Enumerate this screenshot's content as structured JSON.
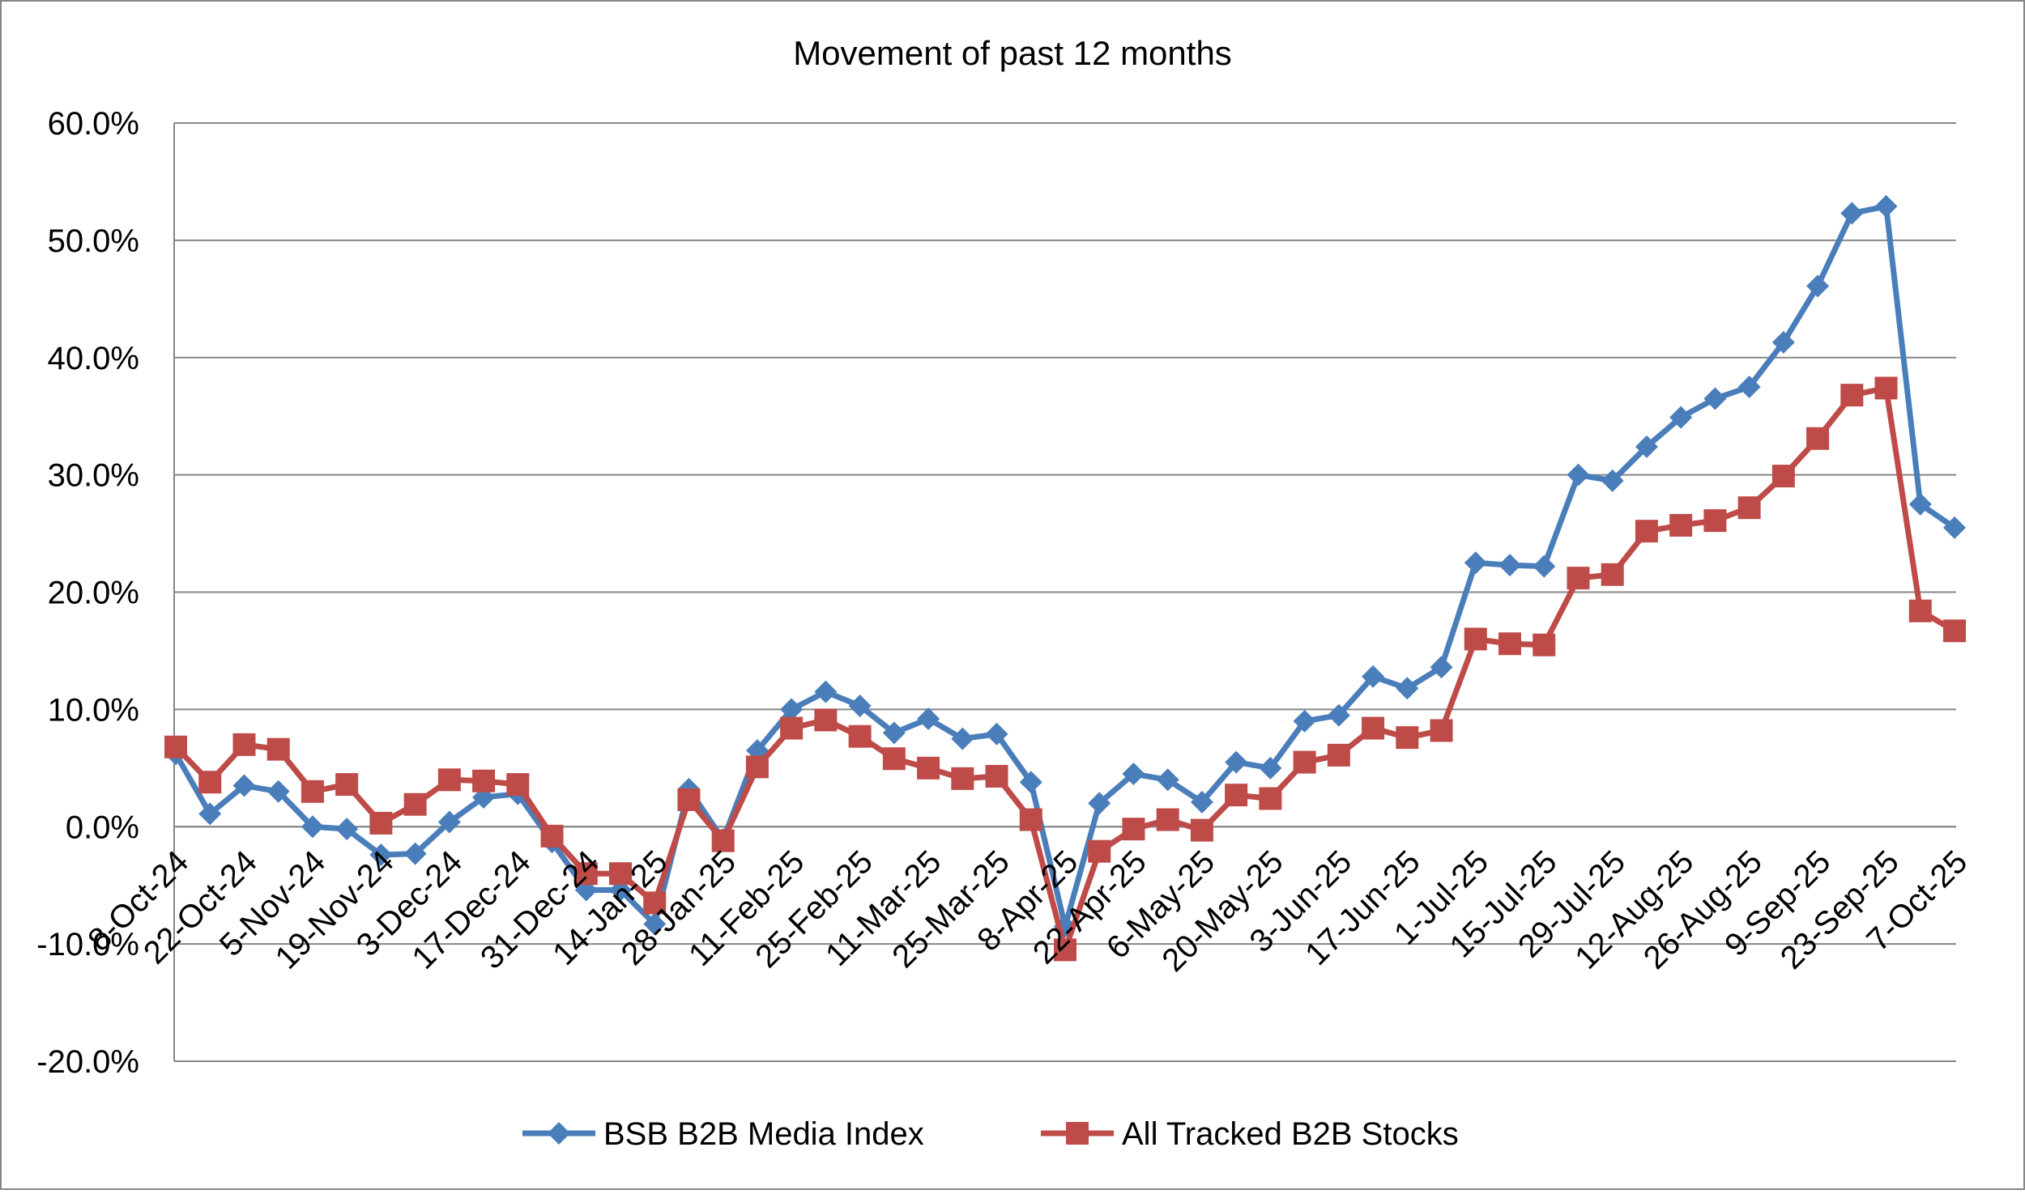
{
  "chart_data": {
    "type": "line",
    "title": "Movement of past 12 months",
    "xlabel": "",
    "ylabel": "",
    "ylim": [
      -20,
      60
    ],
    "y_ticks": [
      -20,
      -10,
      0,
      10,
      20,
      30,
      40,
      50,
      60
    ],
    "y_tick_labels": [
      "-20.0%",
      "-10.0%",
      "0.0%",
      "10.0%",
      "20.0%",
      "30.0%",
      "40.0%",
      "50.0%",
      "60.0%"
    ],
    "grid": true,
    "legend_position": "bottom",
    "x_tick_labels": [
      "8-Oct-24",
      "22-Oct-24",
      "5-Nov-24",
      "19-Nov-24",
      "3-Dec-24",
      "17-Dec-24",
      "31-Dec-24",
      "14-Jan-25",
      "28-Jan-25",
      "11-Feb-25",
      "25-Feb-25",
      "11-Mar-25",
      "25-Mar-25",
      "8-Apr-25",
      "22-Apr-25",
      "6-May-25",
      "20-May-25",
      "3-Jun-25",
      "17-Jun-25",
      "1-Jul-25",
      "15-Jul-25",
      "29-Jul-25",
      "12-Aug-25",
      "26-Aug-25",
      "9-Sep-25",
      "23-Sep-25",
      "7-Oct-25"
    ],
    "x": [
      "8-Oct-24",
      "15-Oct-24",
      "22-Oct-24",
      "29-Oct-24",
      "5-Nov-24",
      "12-Nov-24",
      "19-Nov-24",
      "26-Nov-24",
      "3-Dec-24",
      "10-Dec-24",
      "17-Dec-24",
      "24-Dec-24",
      "31-Dec-24",
      "7-Jan-25",
      "14-Jan-25",
      "21-Jan-25",
      "28-Jan-25",
      "4-Feb-25",
      "11-Feb-25",
      "18-Feb-25",
      "25-Feb-25",
      "4-Mar-25",
      "11-Mar-25",
      "18-Mar-25",
      "25-Mar-25",
      "1-Apr-25",
      "8-Apr-25",
      "15-Apr-25",
      "22-Apr-25",
      "29-Apr-25",
      "6-May-25",
      "13-May-25",
      "20-May-25",
      "27-May-25",
      "3-Jun-25",
      "10-Jun-25",
      "17-Jun-25",
      "24-Jun-25",
      "1-Jul-25",
      "8-Jul-25",
      "15-Jul-25",
      "22-Jul-25",
      "29-Jul-25",
      "5-Aug-25",
      "12-Aug-25",
      "19-Aug-25",
      "26-Aug-25",
      "2-Sep-25",
      "9-Sep-25",
      "16-Sep-25",
      "23-Sep-25",
      "30-Sep-25",
      "7-Oct-25"
    ],
    "series": [
      {
        "name": "BSB B2B Media Index",
        "color": "#4a7ebb",
        "marker": "diamond",
        "values": [
          6.2,
          1.1,
          3.5,
          3.0,
          0.0,
          -0.2,
          -2.4,
          -2.3,
          0.4,
          2.5,
          2.8,
          -1.3,
          -5.4,
          -5.4,
          -8.3,
          3.2,
          -1.1,
          6.5,
          10.0,
          11.5,
          10.3,
          8.0,
          9.2,
          7.5,
          7.9,
          3.8,
          -8.5,
          2.0,
          4.5,
          4.0,
          2.1,
          5.5,
          5.0,
          9.0,
          9.5,
          12.8,
          11.8,
          13.6,
          22.5,
          22.3,
          22.2,
          30.0,
          29.5,
          32.4,
          34.9,
          36.5,
          37.5,
          41.3,
          46.1,
          52.3,
          52.9,
          27.5,
          25.5
        ]
      },
      {
        "name": "All Tracked B2B Stocks",
        "color": "#be4b48",
        "marker": "square",
        "values": [
          6.8,
          3.8,
          7.0,
          6.6,
          3.0,
          3.6,
          0.3,
          1.9,
          4.0,
          3.9,
          3.6,
          -0.8,
          -4.0,
          -4.0,
          -6.5,
          2.3,
          -1.2,
          5.1,
          8.4,
          9.1,
          7.7,
          5.8,
          5.0,
          4.1,
          4.3,
          0.6,
          -10.5,
          -2.1,
          -0.2,
          0.6,
          -0.3,
          2.7,
          2.4,
          5.5,
          6.1,
          8.4,
          7.6,
          8.2,
          16.0,
          15.6,
          15.5,
          21.2,
          21.5,
          25.2,
          25.7,
          26.1,
          27.2,
          29.9,
          33.1,
          36.8,
          37.4,
          18.4,
          16.7
        ]
      }
    ]
  }
}
